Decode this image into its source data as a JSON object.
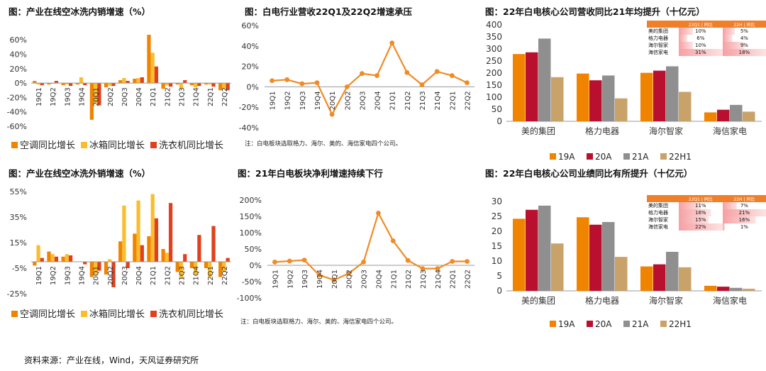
{
  "source": "资料来源：产业在线，Wind，天风证券研究所",
  "colors": {
    "orange": "#f08300",
    "yellow": "#fbbd2e",
    "red": "#e0401d",
    "crimson": "#b8102e",
    "gray": "#8f8f8f",
    "tan": "#c9a26a",
    "line": "#f08b26"
  },
  "chart_data": [
    {
      "id": "c1",
      "type": "bar",
      "title": "图：产业在线空冰洗内销增速（%）",
      "categories": [
        "19Q1",
        "19Q2",
        "19Q3",
        "19Q4",
        "20Q1",
        "20Q2",
        "20Q3",
        "20Q4",
        "21Q1",
        "21Q2",
        "21Q3",
        "21Q4",
        "22Q1",
        "22Q2"
      ],
      "tick_labels": [
        "19Q1",
        "19Q2",
        "19Q3",
        "19Q4",
        "20Q1",
        "20Q2",
        "20Q3",
        "20Q4",
        "21Q1",
        "21Q2",
        "21Q3",
        "21Q4",
        "22Q1",
        "22Q2"
      ],
      "series": [
        {
          "name": "空调同比增长",
          "values": [
            3,
            -2,
            -3,
            -2,
            -51,
            -6,
            4,
            6,
            67,
            -8,
            -2,
            -3,
            -2,
            -10
          ]
        },
        {
          "name": "冰箱同比增长",
          "values": [
            -2,
            -1,
            -2,
            8,
            -28,
            -4,
            7,
            7,
            42,
            -3,
            -8,
            -6,
            -2,
            -8
          ]
        },
        {
          "name": "洗衣机同比增长",
          "values": [
            -3,
            3,
            -4,
            -3,
            -31,
            -4,
            3,
            8,
            23,
            -5,
            4,
            -4,
            -5,
            -10
          ]
        }
      ],
      "ylim": [
        -60,
        70
      ],
      "yticks": [
        "60%",
        "40%",
        "20%",
        "0%",
        "-20%",
        "-40%",
        "-60%"
      ],
      "ytick_values": [
        60,
        40,
        20,
        0,
        -20,
        -40,
        -60
      ]
    },
    {
      "id": "c2",
      "type": "line",
      "title": "图：白电行业营收22Q1及22Q2增速承压",
      "categories": [
        "19Q1",
        "19Q2",
        "19Q3",
        "19Q4",
        "20Q1",
        "20Q2",
        "20Q3",
        "20Q4",
        "21Q1",
        "21Q2",
        "21Q3",
        "21Q4",
        "22Q1",
        "22Q2"
      ],
      "series": [
        {
          "name": "营收增速",
          "values": [
            6,
            7,
            3,
            4,
            -27,
            0,
            13,
            11,
            43,
            14,
            2,
            15,
            11,
            4
          ]
        }
      ],
      "ylim": [
        -40,
        60
      ],
      "yticks": [
        "60%",
        "40%",
        "20%",
        "0%",
        "-20%",
        "-40%"
      ],
      "ytick_values": [
        60,
        40,
        20,
        0,
        -20,
        -40
      ],
      "note": "注：白电板块选取格力、海尔、美的、海信家电四个公司。"
    },
    {
      "id": "c3",
      "type": "bar",
      "title": "图：22年白电核心公司营收同比21年均提升（十亿元）",
      "categories": [
        "美的集团",
        "格力电器",
        "海尔智家",
        "海信家电"
      ],
      "series": [
        {
          "name": "19A",
          "values": [
            279,
            198,
            201,
            37
          ]
        },
        {
          "name": "20A",
          "values": [
            286,
            170,
            210,
            48
          ]
        },
        {
          "name": "21A",
          "values": [
            343,
            190,
            228,
            68
          ]
        },
        {
          "name": "22H1",
          "values": [
            183,
            95,
            122,
            40
          ]
        }
      ],
      "ylim": [
        0,
        400
      ],
      "yticks": [
        "400",
        "350",
        "300",
        "250",
        "200",
        "150",
        "100",
        "50",
        "0"
      ],
      "ytick_values": [
        400,
        350,
        300,
        250,
        200,
        150,
        100,
        50,
        0
      ],
      "inset": {
        "headers": [
          "22Q1 | 同比",
          "22H | 同比"
        ],
        "rows": [
          {
            "label": "美的集团",
            "a": "10%",
            "b": "5%",
            "a_val": 10,
            "b_val": 5
          },
          {
            "label": "格力电器",
            "a": "6%",
            "b": "4%",
            "a_val": 6,
            "b_val": 4
          },
          {
            "label": "海尔智家",
            "a": "10%",
            "b": "9%",
            "a_val": 10,
            "b_val": 9
          },
          {
            "label": "海信家电",
            "a": "31%",
            "b": "18%",
            "a_val": 31,
            "b_val": 18
          }
        ]
      }
    },
    {
      "id": "c4",
      "type": "bar",
      "title": "图：产业在线空冰洗外销增速（%）",
      "categories": [
        "19Q1",
        "19Q2",
        "19Q3",
        "19Q4",
        "20Q1",
        "20Q2",
        "20Q3",
        "20Q4",
        "21Q1",
        "21Q2",
        "21Q3",
        "21Q4",
        "22Q1",
        "22Q2"
      ],
      "tick_labels": [
        "19Q1",
        "19Q2",
        "19Q3",
        "19Q4",
        "20Q1",
        "20Q2",
        "20Q3",
        "20Q4",
        "21Q1",
        "21Q2",
        "21Q3",
        "21Q4",
        "22Q1",
        "22Q2"
      ],
      "series": [
        {
          "name": "空调同比增长",
          "values": [
            -3,
            8,
            4,
            0,
            -12,
            -10,
            16,
            22,
            20,
            10,
            -8,
            -5,
            -5,
            -12
          ]
        },
        {
          "name": "冰箱同比增长",
          "values": [
            13,
            6,
            6,
            0,
            -10,
            2,
            44,
            48,
            53,
            7,
            -13,
            -10,
            -12,
            -8
          ]
        },
        {
          "name": "洗衣机同比增长",
          "values": [
            3,
            4,
            5,
            -2,
            -7,
            -20,
            -5,
            13,
            34,
            46,
            6,
            21,
            28,
            3
          ]
        }
      ],
      "ylim": [
        -25,
        55
      ],
      "yticks": [
        "55%",
        "35%",
        "15%",
        "-5%",
        "-25%"
      ],
      "ytick_values": [
        55,
        35,
        15,
        -5,
        -25
      ]
    },
    {
      "id": "c5",
      "type": "line",
      "title": "图：21年白电板块净利增速持续下行",
      "categories": [
        "19Q1",
        "19Q2",
        "19Q3",
        "19Q4",
        "20Q1",
        "20Q2",
        "20Q3",
        "20Q4",
        "21Q1",
        "21Q2",
        "21Q3",
        "21Q4",
        "22Q1",
        "22Q2"
      ],
      "series": [
        {
          "name": "净利增速",
          "values": [
            10,
            13,
            16,
            -30,
            -45,
            -25,
            10,
            160,
            75,
            15,
            -10,
            -10,
            12,
            12
          ]
        }
      ],
      "ylim": [
        -100,
        200
      ],
      "yticks": [
        "200%",
        "150%",
        "100%",
        "50%",
        "0%",
        "-50%",
        "-100%"
      ],
      "ytick_values": [
        200,
        150,
        100,
        50,
        0,
        -50,
        -100
      ],
      "note": "注：白电板块选取格力、海尔、美的、海信家电四个公司。"
    },
    {
      "id": "c6",
      "type": "bar",
      "title": "图：22年白电核心公司业绩同比有所提升（十亿元）",
      "categories": [
        "美的集团",
        "格力电器",
        "海尔智家",
        "海信家电"
      ],
      "series": [
        {
          "name": "19A",
          "values": [
            24.2,
            24.7,
            8.2,
            1.7
          ]
        },
        {
          "name": "20A",
          "values": [
            27.2,
            22.2,
            8.9,
            1.4
          ]
        },
        {
          "name": "21A",
          "values": [
            28.6,
            23.1,
            13.1,
            1.0
          ]
        },
        {
          "name": "22H1",
          "values": [
            15.9,
            11.4,
            7.9,
            0.7
          ]
        }
      ],
      "ylim": [
        0,
        30
      ],
      "yticks": [
        "30",
        "25",
        "20",
        "15",
        "10",
        "5",
        "0"
      ],
      "ytick_values": [
        30,
        25,
        20,
        15,
        10,
        5,
        0
      ],
      "inset": {
        "headers": [
          "22Q1 | 同比",
          "22H | 同比"
        ],
        "rows": [
          {
            "label": "美的集团",
            "a": "11%",
            "b": "7%",
            "a_val": 11,
            "b_val": 7
          },
          {
            "label": "格力电器",
            "a": "16%",
            "b": "21%",
            "a_val": 16,
            "b_val": 21
          },
          {
            "label": "海尔智家",
            "a": "15%",
            "b": "16%",
            "a_val": 15,
            "b_val": 16
          },
          {
            "label": "海信家电",
            "a": "22%",
            "b": "1%",
            "a_val": 22,
            "b_val": 1
          }
        ]
      }
    }
  ]
}
